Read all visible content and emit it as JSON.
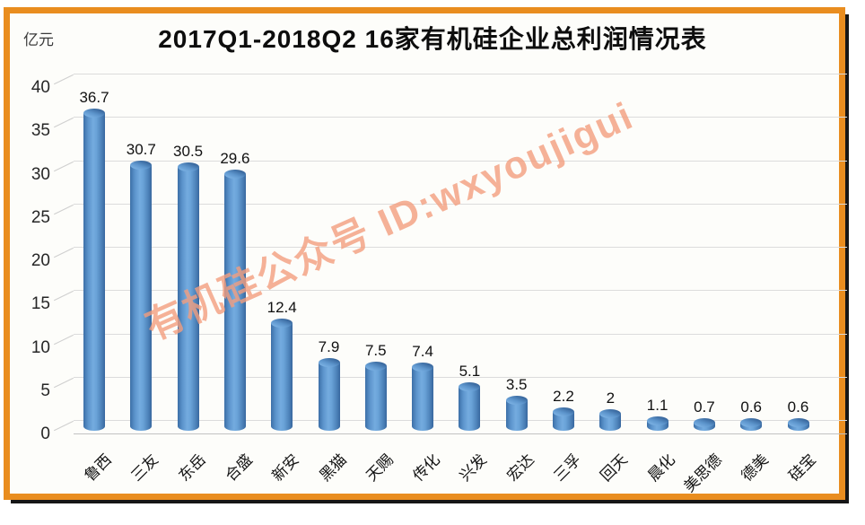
{
  "frame": {
    "border_color": "#e98d1f",
    "shadow_color": "#161616",
    "inner_background": "#fdfdfa"
  },
  "header": {
    "title": "2017Q1-2018Q2  16家有机硅企业总利润情况表",
    "unit_label": "亿元"
  },
  "watermark": {
    "text": "有机硅公众号  ID:wxyoujigui",
    "color": "#f39e7e"
  },
  "chart_data": {
    "type": "bar",
    "bar_style": "3d-cylinder",
    "title": "2017Q1-2018Q2  16家有机硅企业总利润情况表",
    "xlabel": "",
    "ylabel": "亿元",
    "categories": [
      "鲁西",
      "三友",
      "东岳",
      "合盛",
      "新安",
      "黑猫",
      "天赐",
      "传化",
      "兴发",
      "宏达",
      "三孚",
      "回天",
      "晨化",
      "美思德",
      "德美",
      "硅宝"
    ],
    "values": [
      36.7,
      30.7,
      30.5,
      29.6,
      12.4,
      7.9,
      7.5,
      7.4,
      5.1,
      3.5,
      2.2,
      2,
      1.1,
      0.7,
      0.6,
      0.6
    ],
    "ylim": [
      0,
      40
    ],
    "yticks": [
      0,
      5,
      10,
      15,
      20,
      25,
      30,
      35,
      40
    ],
    "grid": true,
    "legend_position": "none",
    "value_labels": true,
    "bar_color": "#5b96cd",
    "category_label_rotation_deg": -45
  }
}
